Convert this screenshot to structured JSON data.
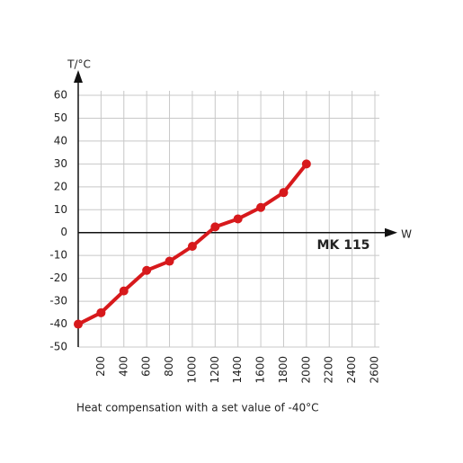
{
  "chart_data": {
    "type": "line",
    "y_label": "T/°C",
    "x_label": "W",
    "annotation": "MK 115",
    "caption": "Heat compensation with a set value of -40°C",
    "x": [
      0,
      200,
      400,
      600,
      800,
      1000,
      1200,
      1400,
      1600,
      1800,
      2000
    ],
    "values": [
      -40,
      -35,
      -25.5,
      -16.5,
      -12.5,
      -6,
      2.5,
      6,
      11,
      17.5,
      30
    ],
    "color": "#d7191c",
    "xlim": [
      0,
      2600
    ],
    "xticks": [
      200,
      400,
      600,
      800,
      1000,
      1200,
      1400,
      1600,
      1800,
      2000,
      2200,
      2400,
      2600
    ],
    "ylim": [
      -50,
      60
    ],
    "yticks": [
      -50,
      -40,
      -30,
      -20,
      -10,
      0,
      10,
      20,
      30,
      40,
      50,
      60
    ],
    "grid": true
  }
}
